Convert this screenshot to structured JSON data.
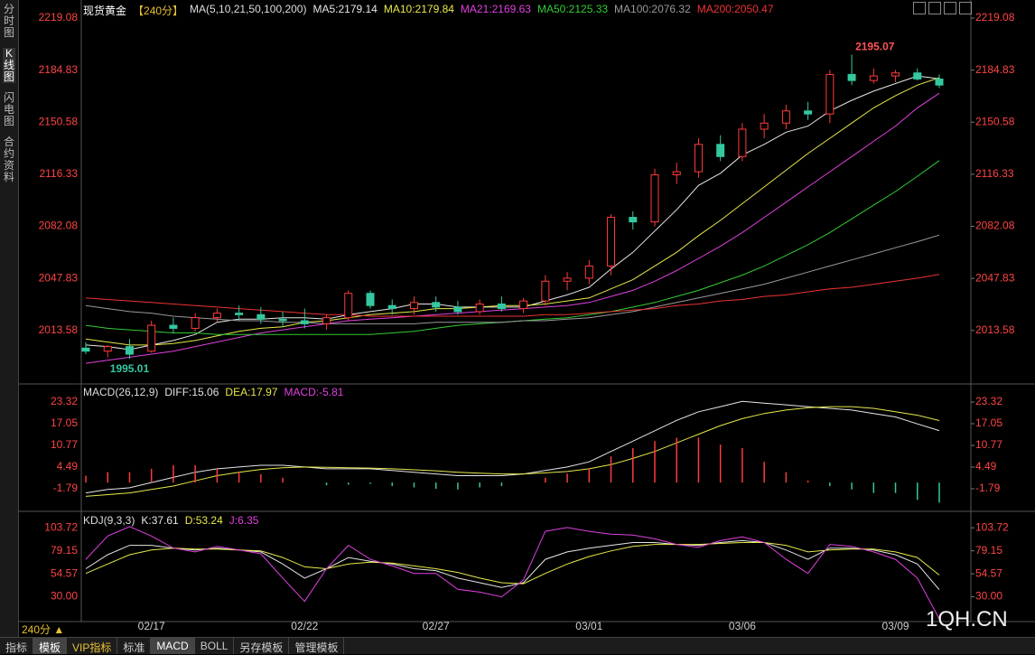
{
  "ui": {
    "sidebar": [
      "分时图",
      "K线图",
      "闪电图",
      "合约资料"
    ],
    "period_button": "240分 ▲",
    "tabs": [
      "指标",
      "模板",
      "VIP指标",
      "标准",
      "MACD",
      "BOLL",
      "另存模板",
      "管理模板"
    ],
    "watermark": "1QH.CN"
  },
  "chart_data": [
    {
      "type": "candlestick",
      "title": "现货黄金",
      "subtitle": "【240分】",
      "indicator": "MA(5,10,21,50,100,200)",
      "up_color": "#ff3b3b",
      "down_color": "#35c8a0",
      "high_label": "2195.07",
      "low_label": "1995.01",
      "categories": [
        null,
        null,
        null,
        "02/17",
        null,
        null,
        null,
        null,
        null,
        null,
        "02/22",
        null,
        null,
        null,
        null,
        null,
        "02/27",
        null,
        null,
        null,
        null,
        null,
        null,
        "03/01",
        null,
        null,
        null,
        null,
        null,
        null,
        "03/06",
        null,
        null,
        null,
        null,
        null,
        null,
        "03/09",
        null,
        null
      ],
      "open": [
        2002,
        2000,
        2003,
        2000,
        2017,
        2015,
        2022,
        2025,
        2024,
        2021,
        2020,
        2018,
        2022,
        2038,
        2030,
        2028,
        2032,
        2029,
        2026,
        2031,
        2028,
        2033,
        2046,
        2048,
        2056,
        2088,
        2085,
        2116,
        2118,
        2136,
        2128,
        2146,
        2150,
        2158,
        2156,
        2182,
        2178,
        2181,
        2183,
        2179
      ],
      "high": [
        2006,
        2004,
        2008,
        2020,
        2022,
        2025,
        2028,
        2030,
        2029,
        2026,
        2028,
        2024,
        2040,
        2040,
        2034,
        2036,
        2036,
        2033,
        2034,
        2036,
        2035,
        2050,
        2052,
        2060,
        2090,
        2092,
        2120,
        2124,
        2140,
        2142,
        2150,
        2156,
        2162,
        2164,
        2185,
        2195.07,
        2186,
        2185,
        2186,
        2182
      ],
      "low": [
        1998,
        1996,
        1995.01,
        1999,
        2012,
        2013,
        2019,
        2020,
        2018,
        2016,
        2015,
        2014,
        2020,
        2028,
        2024,
        2024,
        2026,
        2024,
        2024,
        2026,
        2025,
        2030,
        2040,
        2044,
        2050,
        2080,
        2082,
        2110,
        2114,
        2125,
        2125,
        2140,
        2146,
        2152,
        2150,
        2175,
        2176,
        2177,
        2178,
        2173
      ],
      "close": [
        2000,
        2003,
        1998,
        2017,
        2015,
        2022,
        2025,
        2024,
        2021,
        2020,
        2018,
        2022,
        2038,
        2030,
        2028,
        2032,
        2029,
        2026,
        2031,
        2028,
        2033,
        2046,
        2048,
        2056,
        2088,
        2085,
        2116,
        2118,
        2136,
        2128,
        2146,
        2150,
        2158,
        2156,
        2182,
        2178,
        2181,
        2183,
        2179,
        2175
      ],
      "series": [
        {
          "label": "MA5:2179.14",
          "color": "#e6e6e6",
          "values": [
            2004,
            2003,
            2001,
            2004,
            2007,
            2011,
            2019,
            2021,
            2021,
            2022,
            2022,
            2021,
            2024,
            2026,
            2028,
            2031,
            2031,
            2029,
            2029,
            2029,
            2029,
            2033,
            2037,
            2042,
            2054,
            2065,
            2079,
            2093,
            2109,
            2117,
            2129,
            2136,
            2144,
            2148,
            2158,
            2165,
            2171,
            2176,
            2181,
            2179.14
          ]
        },
        {
          "label": "MA10:2179.84",
          "color": "#e8e84a",
          "values": [
            2008,
            2006,
            2004,
            2004,
            2005,
            2007,
            2010,
            2013,
            2015,
            2016,
            2019,
            2020,
            2022,
            2024,
            2025,
            2026,
            2028,
            2028,
            2029,
            2030,
            2030,
            2031,
            2033,
            2035,
            2041,
            2047,
            2056,
            2065,
            2076,
            2086,
            2097,
            2108,
            2119,
            2130,
            2140,
            2150,
            2160,
            2168,
            2175,
            2179.84
          ]
        },
        {
          "label": "MA21:2169.63",
          "color": "#e040e0",
          "values": [
            1992,
            1994,
            1996,
            1998,
            2000,
            2003,
            2006,
            2009,
            2012,
            2014,
            2016,
            2018,
            2020,
            2021,
            2022,
            2023,
            2024,
            2025,
            2026,
            2027,
            2028,
            2029,
            2030,
            2032,
            2036,
            2040,
            2046,
            2053,
            2061,
            2069,
            2078,
            2088,
            2098,
            2108,
            2118,
            2128,
            2138,
            2148,
            2160,
            2169.63
          ]
        },
        {
          "label": "MA50:2125.33",
          "color": "#33cc33",
          "values": [
            2017,
            2015,
            2014,
            2013,
            2012,
            2012,
            2011,
            2011,
            2011,
            2011,
            2011,
            2011,
            2011,
            2011,
            2012,
            2013,
            2015,
            2017,
            2018,
            2019,
            2020,
            2021,
            2022,
            2024,
            2026,
            2029,
            2032,
            2036,
            2040,
            2045,
            2050,
            2056,
            2063,
            2070,
            2078,
            2087,
            2096,
            2105,
            2115,
            2125.33
          ]
        },
        {
          "label": "MA100:2076.32",
          "color": "#999999",
          "values": [
            2030,
            2028,
            2026,
            2025,
            2023,
            2022,
            2021,
            2020,
            2020,
            2019,
            2019,
            2018,
            2018,
            2018,
            2018,
            2018,
            2019,
            2019,
            2019,
            2019,
            2020,
            2020,
            2021,
            2022,
            2024,
            2026,
            2029,
            2032,
            2035,
            2038,
            2041,
            2044,
            2048,
            2052,
            2056,
            2060,
            2064,
            2068,
            2072,
            2076.32
          ]
        },
        {
          "label": "MA200:2050.47",
          "color": "#ee3333",
          "values": [
            2035,
            2034,
            2033,
            2032,
            2031,
            2030,
            2029,
            2028,
            2027,
            2026,
            2025,
            2024,
            2024,
            2023,
            2023,
            2023,
            2023,
            2023,
            2023,
            2023,
            2023,
            2024,
            2024,
            2025,
            2026,
            2027,
            2028,
            2030,
            2031,
            2033,
            2034,
            2036,
            2037,
            2039,
            2041,
            2042,
            2044,
            2046,
            2048,
            2050.47
          ]
        }
      ],
      "ylim": [
        1980.2,
        2226.2
      ],
      "yticks": [
        2219.08,
        2184.83,
        2150.58,
        2116.33,
        2082.08,
        2047.83,
        2013.58
      ],
      "tick_color": "#ff4444"
    },
    {
      "type": "macd",
      "title": "MACD(26,12,9)",
      "up_color": "#ff3b3b",
      "down_color": "#35c8a0",
      "series": [
        {
          "label": "DIFF:15.06",
          "color": "#e6e6e6",
          "values": [
            -3,
            -2,
            -1.5,
            0,
            1.5,
            3,
            4,
            4.5,
            5,
            5,
            4.5,
            4,
            4,
            4,
            3.5,
            3,
            2.5,
            2,
            2,
            2,
            2.5,
            3.5,
            4.5,
            6,
            9,
            12,
            15,
            18,
            20.5,
            22,
            23.5,
            23,
            22.5,
            22,
            21.5,
            21,
            20,
            19,
            17,
            15.06
          ]
        },
        {
          "label": "DEA:17.97",
          "color": "#e8e84a",
          "values": [
            -4,
            -3.5,
            -3,
            -2,
            -1,
            0.5,
            2,
            3,
            3.8,
            4.3,
            4.5,
            4.4,
            4.3,
            4.2,
            4,
            3.7,
            3.4,
            3,
            2.7,
            2.5,
            2.5,
            2.8,
            3.2,
            4,
            5.2,
            7,
            9,
            11.5,
            14,
            16.5,
            18.5,
            20,
            21,
            21.7,
            22,
            22,
            21.5,
            20.5,
            19.5,
            17.97
          ]
        },
        {
          "label": "MACD:-5.81",
          "color": "#e040e0",
          "kind": "bar",
          "values": [
            2,
            3,
            3,
            4,
            5,
            5,
            4,
            3,
            2.4,
            1.4,
            0,
            -0.8,
            -0.6,
            -0.4,
            -1,
            -1.4,
            -1.8,
            -2,
            -1.4,
            -1,
            0,
            1.4,
            2.6,
            4,
            7.6,
            10,
            12,
            13,
            13,
            11,
            10,
            6,
            3,
            0.6,
            -1,
            -2,
            -3,
            -3,
            -5,
            -5.81
          ]
        }
      ],
      "ylim": [
        -7.55,
        27.77
      ],
      "yticks": [
        23.32,
        17.05,
        10.77,
        4.49,
        -1.79
      ],
      "tick_color": "#ff4444"
    },
    {
      "type": "kdj",
      "title": "KDJ(9,3,3)",
      "series": [
        {
          "label": "K:37.61",
          "color": "#e6e6e6",
          "values": [
            60,
            75,
            85,
            85,
            82,
            80,
            82,
            80,
            78,
            65,
            50,
            60,
            72,
            68,
            65,
            60,
            58,
            50,
            45,
            40,
            45,
            70,
            78,
            82,
            85,
            88,
            88,
            86,
            85,
            88,
            90,
            88,
            80,
            70,
            82,
            82,
            80,
            75,
            65,
            37.61
          ]
        },
        {
          "label": "D:53.24",
          "color": "#e8e84a",
          "values": [
            55,
            65,
            75,
            80,
            82,
            81,
            81,
            80,
            79,
            72,
            62,
            60,
            65,
            67,
            66,
            63,
            60,
            56,
            50,
            45,
            44,
            55,
            65,
            73,
            79,
            84,
            86,
            86,
            86,
            87,
            88,
            88,
            85,
            78,
            80,
            81,
            81,
            78,
            72,
            53.24
          ]
        },
        {
          "label": "J:6.35",
          "color": "#e040e0",
          "values": [
            70,
            95,
            105,
            95,
            82,
            78,
            84,
            80,
            76,
            50,
            25,
            60,
            85,
            70,
            63,
            55,
            55,
            38,
            35,
            30,
            48,
            100,
            104,
            100,
            97,
            96,
            92,
            86,
            83,
            90,
            94,
            88,
            70,
            55,
            86,
            84,
            78,
            70,
            50,
            6.35
          ]
        }
      ],
      "ylim": [
        3.5,
        119.4
      ],
      "yticks": [
        103.72,
        79.15,
        54.57,
        {
          "value": 30,
          "label": "30.00"
        }
      ],
      "tick_color": "#ff4444"
    }
  ]
}
